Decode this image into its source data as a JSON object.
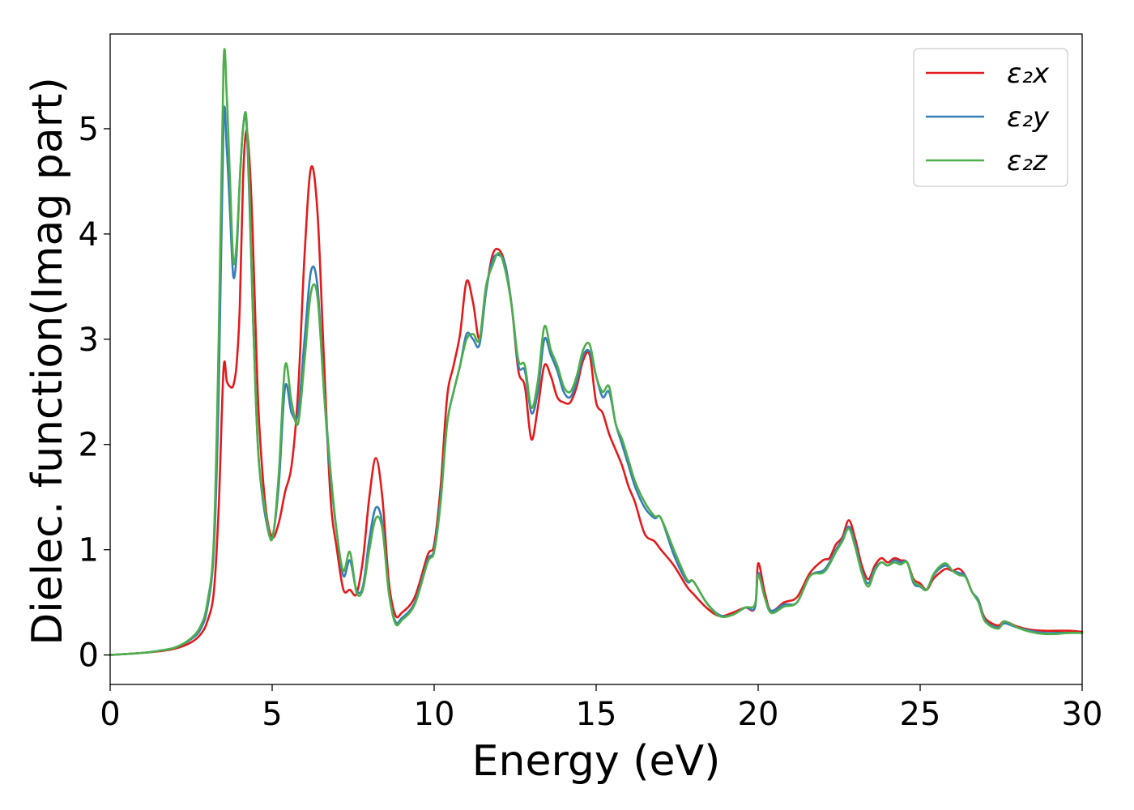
{
  "chart_data": {
    "type": "line",
    "title": "",
    "xlabel": "Energy (eV)",
    "ylabel": "Dielec. function(Imag part)",
    "xlim": [
      0,
      30
    ],
    "ylim": [
      -0.28,
      5.9
    ],
    "xticks": [
      0,
      5,
      10,
      15,
      20,
      25,
      30
    ],
    "yticks": [
      0,
      1,
      2,
      3,
      4,
      5
    ],
    "grid": false,
    "legend": "top-right",
    "series": [
      {
        "name": "ε₂x",
        "color": "#e41a1c",
        "x": [
          0,
          1,
          1.5,
          2,
          2.5,
          2.8,
          3,
          3.2,
          3.35,
          3.5,
          3.6,
          3.7,
          3.8,
          3.9,
          4.0,
          4.1,
          4.2,
          4.3,
          4.4,
          4.5,
          4.6,
          4.8,
          5.0,
          5.2,
          5.4,
          5.6,
          5.8,
          6.0,
          6.2,
          6.4,
          6.6,
          6.8,
          7.0,
          7.2,
          7.4,
          7.6,
          7.8,
          8.0,
          8.2,
          8.4,
          8.6,
          8.8,
          9.0,
          9.4,
          9.8,
          10.0,
          10.2,
          10.4,
          10.6,
          10.8,
          11.0,
          11.2,
          11.4,
          11.6,
          11.8,
          12.0,
          12.2,
          12.4,
          12.6,
          12.8,
          13.0,
          13.2,
          13.4,
          13.6,
          13.8,
          14.0,
          14.2,
          14.4,
          14.6,
          14.8,
          15.0,
          15.2,
          15.4,
          15.6,
          15.8,
          16.0,
          16.2,
          16.5,
          16.8,
          17.0,
          17.4,
          17.8,
          18.0,
          18.4,
          18.8,
          19.2,
          19.6,
          19.9,
          20.0,
          20.2,
          20.4,
          20.8,
          21.2,
          21.6,
          22.0,
          22.2,
          22.4,
          22.6,
          22.8,
          23.0,
          23.2,
          23.4,
          23.6,
          23.8,
          24.0,
          24.2,
          24.4,
          24.6,
          24.8,
          25.0,
          25.2,
          25.4,
          25.6,
          25.8,
          26.0,
          26.2,
          26.4,
          26.6,
          26.8,
          27.0,
          27.4,
          27.6,
          28.0,
          28.4,
          28.8,
          29.2,
          29.6,
          30
        ],
        "y": [
          0,
          0.02,
          0.035,
          0.06,
          0.12,
          0.2,
          0.32,
          0.6,
          1.4,
          2.72,
          2.6,
          2.55,
          2.56,
          2.75,
          3.3,
          4.5,
          4.98,
          4.7,
          4.0,
          3.0,
          2.2,
          1.4,
          1.12,
          1.25,
          1.55,
          1.8,
          2.5,
          3.8,
          4.63,
          4.2,
          2.8,
          1.5,
          1.0,
          0.62,
          0.62,
          0.58,
          0.9,
          1.5,
          1.87,
          1.5,
          0.7,
          0.38,
          0.4,
          0.55,
          0.95,
          1.05,
          1.6,
          2.45,
          2.75,
          3.05,
          3.55,
          3.35,
          3.0,
          3.45,
          3.8,
          3.85,
          3.7,
          3.3,
          2.7,
          2.55,
          2.05,
          2.35,
          2.75,
          2.65,
          2.45,
          2.4,
          2.4,
          2.55,
          2.8,
          2.85,
          2.4,
          2.3,
          2.1,
          1.95,
          1.8,
          1.6,
          1.45,
          1.15,
          1.08,
          1.0,
          0.85,
          0.65,
          0.58,
          0.45,
          0.37,
          0.4,
          0.45,
          0.45,
          0.87,
          0.6,
          0.42,
          0.5,
          0.55,
          0.78,
          0.9,
          0.92,
          1.05,
          1.12,
          1.28,
          1.1,
          0.85,
          0.72,
          0.85,
          0.92,
          0.88,
          0.92,
          0.9,
          0.88,
          0.72,
          0.68,
          0.62,
          0.72,
          0.78,
          0.82,
          0.8,
          0.82,
          0.75,
          0.6,
          0.52,
          0.35,
          0.28,
          0.32,
          0.27,
          0.24,
          0.23,
          0.23,
          0.23,
          0.22
        ]
      },
      {
        "name": "ε₂y",
        "color": "#377eb8",
        "x": [
          0,
          1,
          1.5,
          2,
          2.5,
          2.8,
          3,
          3.2,
          3.35,
          3.5,
          3.6,
          3.7,
          3.8,
          3.9,
          4.0,
          4.1,
          4.2,
          4.3,
          4.4,
          4.5,
          4.6,
          4.8,
          5.0,
          5.2,
          5.4,
          5.6,
          5.8,
          6.0,
          6.2,
          6.4,
          6.6,
          6.8,
          7.0,
          7.2,
          7.4,
          7.6,
          7.8,
          8.0,
          8.2,
          8.4,
          8.6,
          8.8,
          9.0,
          9.4,
          9.8,
          10.0,
          10.2,
          10.4,
          10.6,
          10.8,
          11.0,
          11.2,
          11.4,
          11.6,
          11.8,
          12.0,
          12.2,
          12.4,
          12.6,
          12.8,
          13.0,
          13.2,
          13.4,
          13.6,
          13.8,
          14.0,
          14.2,
          14.4,
          14.6,
          14.8,
          15.0,
          15.2,
          15.4,
          15.6,
          15.8,
          16.0,
          16.2,
          16.5,
          16.8,
          17.0,
          17.4,
          17.8,
          18.0,
          18.4,
          18.8,
          19.2,
          19.6,
          19.9,
          20.0,
          20.2,
          20.4,
          20.8,
          21.2,
          21.6,
          22.0,
          22.2,
          22.4,
          22.6,
          22.8,
          23.0,
          23.2,
          23.4,
          23.6,
          23.8,
          24.0,
          24.2,
          24.4,
          24.6,
          24.8,
          25.0,
          25.2,
          25.4,
          25.6,
          25.8,
          26.0,
          26.2,
          26.4,
          26.6,
          26.8,
          27.0,
          27.4,
          27.6,
          28.0,
          28.4,
          28.8,
          29.2,
          29.6,
          30
        ],
        "y": [
          0,
          0.02,
          0.04,
          0.07,
          0.15,
          0.25,
          0.45,
          1.0,
          2.5,
          5.07,
          4.8,
          4.2,
          3.6,
          3.8,
          4.5,
          5.0,
          5.08,
          4.3,
          3.3,
          2.4,
          1.8,
          1.3,
          1.12,
          1.6,
          2.55,
          2.3,
          2.3,
          3.0,
          3.65,
          3.5,
          2.5,
          1.7,
          1.15,
          0.75,
          0.9,
          0.62,
          0.65,
          1.1,
          1.4,
          1.25,
          0.6,
          0.32,
          0.35,
          0.5,
          0.9,
          1.0,
          1.5,
          2.2,
          2.5,
          2.75,
          3.05,
          3.0,
          2.95,
          3.45,
          3.75,
          3.8,
          3.7,
          3.3,
          2.75,
          2.7,
          2.3,
          2.5,
          3.0,
          2.85,
          2.7,
          2.5,
          2.45,
          2.6,
          2.85,
          2.88,
          2.65,
          2.45,
          2.5,
          2.2,
          2.0,
          1.8,
          1.6,
          1.4,
          1.3,
          1.3,
          0.95,
          0.7,
          0.7,
          0.5,
          0.38,
          0.38,
          0.45,
          0.45,
          0.78,
          0.55,
          0.42,
          0.48,
          0.5,
          0.75,
          0.8,
          0.88,
          1.0,
          1.1,
          1.22,
          1.05,
          0.8,
          0.68,
          0.82,
          0.88,
          0.85,
          0.9,
          0.88,
          0.88,
          0.68,
          0.65,
          0.62,
          0.75,
          0.82,
          0.85,
          0.8,
          0.78,
          0.75,
          0.6,
          0.52,
          0.33,
          0.26,
          0.3,
          0.26,
          0.23,
          0.21,
          0.21,
          0.21,
          0.21
        ]
      },
      {
        "name": "ε₂z",
        "color": "#4daf4a",
        "x": [
          0,
          1,
          1.5,
          2,
          2.5,
          2.8,
          3,
          3.2,
          3.35,
          3.5,
          3.6,
          3.7,
          3.8,
          3.9,
          4.0,
          4.1,
          4.2,
          4.3,
          4.4,
          4.5,
          4.6,
          4.8,
          5.0,
          5.2,
          5.4,
          5.6,
          5.8,
          6.0,
          6.2,
          6.4,
          6.6,
          6.8,
          7.0,
          7.2,
          7.4,
          7.6,
          7.8,
          8.0,
          8.2,
          8.4,
          8.6,
          8.8,
          9.0,
          9.4,
          9.8,
          10.0,
          10.2,
          10.4,
          10.6,
          10.8,
          11.0,
          11.2,
          11.4,
          11.6,
          11.8,
          12.0,
          12.2,
          12.4,
          12.6,
          12.8,
          13.0,
          13.2,
          13.4,
          13.6,
          13.8,
          14.0,
          14.2,
          14.4,
          14.6,
          14.8,
          15.0,
          15.2,
          15.4,
          15.6,
          15.8,
          16.0,
          16.2,
          16.5,
          16.8,
          17.0,
          17.4,
          17.8,
          18.0,
          18.4,
          18.8,
          19.2,
          19.6,
          19.9,
          20.0,
          20.2,
          20.4,
          20.8,
          21.2,
          21.6,
          22.0,
          22.2,
          22.4,
          22.6,
          22.8,
          23.0,
          23.2,
          23.4,
          23.6,
          23.8,
          24.0,
          24.2,
          24.4,
          24.6,
          24.8,
          25.0,
          25.2,
          25.4,
          25.6,
          25.8,
          26.0,
          26.2,
          26.4,
          26.6,
          26.8,
          27.0,
          27.4,
          27.6,
          28.0,
          28.4,
          28.8,
          29.2,
          29.6,
          30
        ],
        "y": [
          0,
          0.02,
          0.04,
          0.07,
          0.16,
          0.28,
          0.5,
          1.1,
          3.0,
          5.62,
          5.3,
          4.5,
          3.75,
          3.9,
          4.5,
          5.0,
          5.12,
          4.4,
          3.3,
          2.4,
          1.8,
          1.35,
          1.1,
          1.7,
          2.75,
          2.4,
          2.2,
          2.8,
          3.45,
          3.4,
          2.5,
          1.75,
          1.15,
          0.8,
          0.98,
          0.6,
          0.62,
          1.0,
          1.3,
          1.2,
          0.6,
          0.3,
          0.33,
          0.48,
          0.88,
          0.98,
          1.45,
          2.2,
          2.5,
          2.75,
          3.0,
          3.05,
          3.0,
          3.5,
          3.7,
          3.82,
          3.65,
          3.3,
          2.8,
          2.75,
          2.35,
          2.6,
          3.12,
          2.9,
          2.75,
          2.55,
          2.5,
          2.65,
          2.9,
          2.95,
          2.65,
          2.5,
          2.55,
          2.2,
          2.05,
          1.85,
          1.65,
          1.45,
          1.32,
          1.3,
          1.0,
          0.72,
          0.7,
          0.5,
          0.37,
          0.38,
          0.45,
          0.48,
          0.76,
          0.55,
          0.4,
          0.46,
          0.5,
          0.75,
          0.78,
          0.86,
          0.98,
          1.08,
          1.2,
          1.02,
          0.78,
          0.65,
          0.8,
          0.88,
          0.85,
          0.88,
          0.86,
          0.88,
          0.7,
          0.66,
          0.62,
          0.76,
          0.84,
          0.87,
          0.8,
          0.76,
          0.74,
          0.6,
          0.5,
          0.32,
          0.25,
          0.32,
          0.26,
          0.22,
          0.2,
          0.2,
          0.21,
          0.21
        ]
      }
    ]
  }
}
